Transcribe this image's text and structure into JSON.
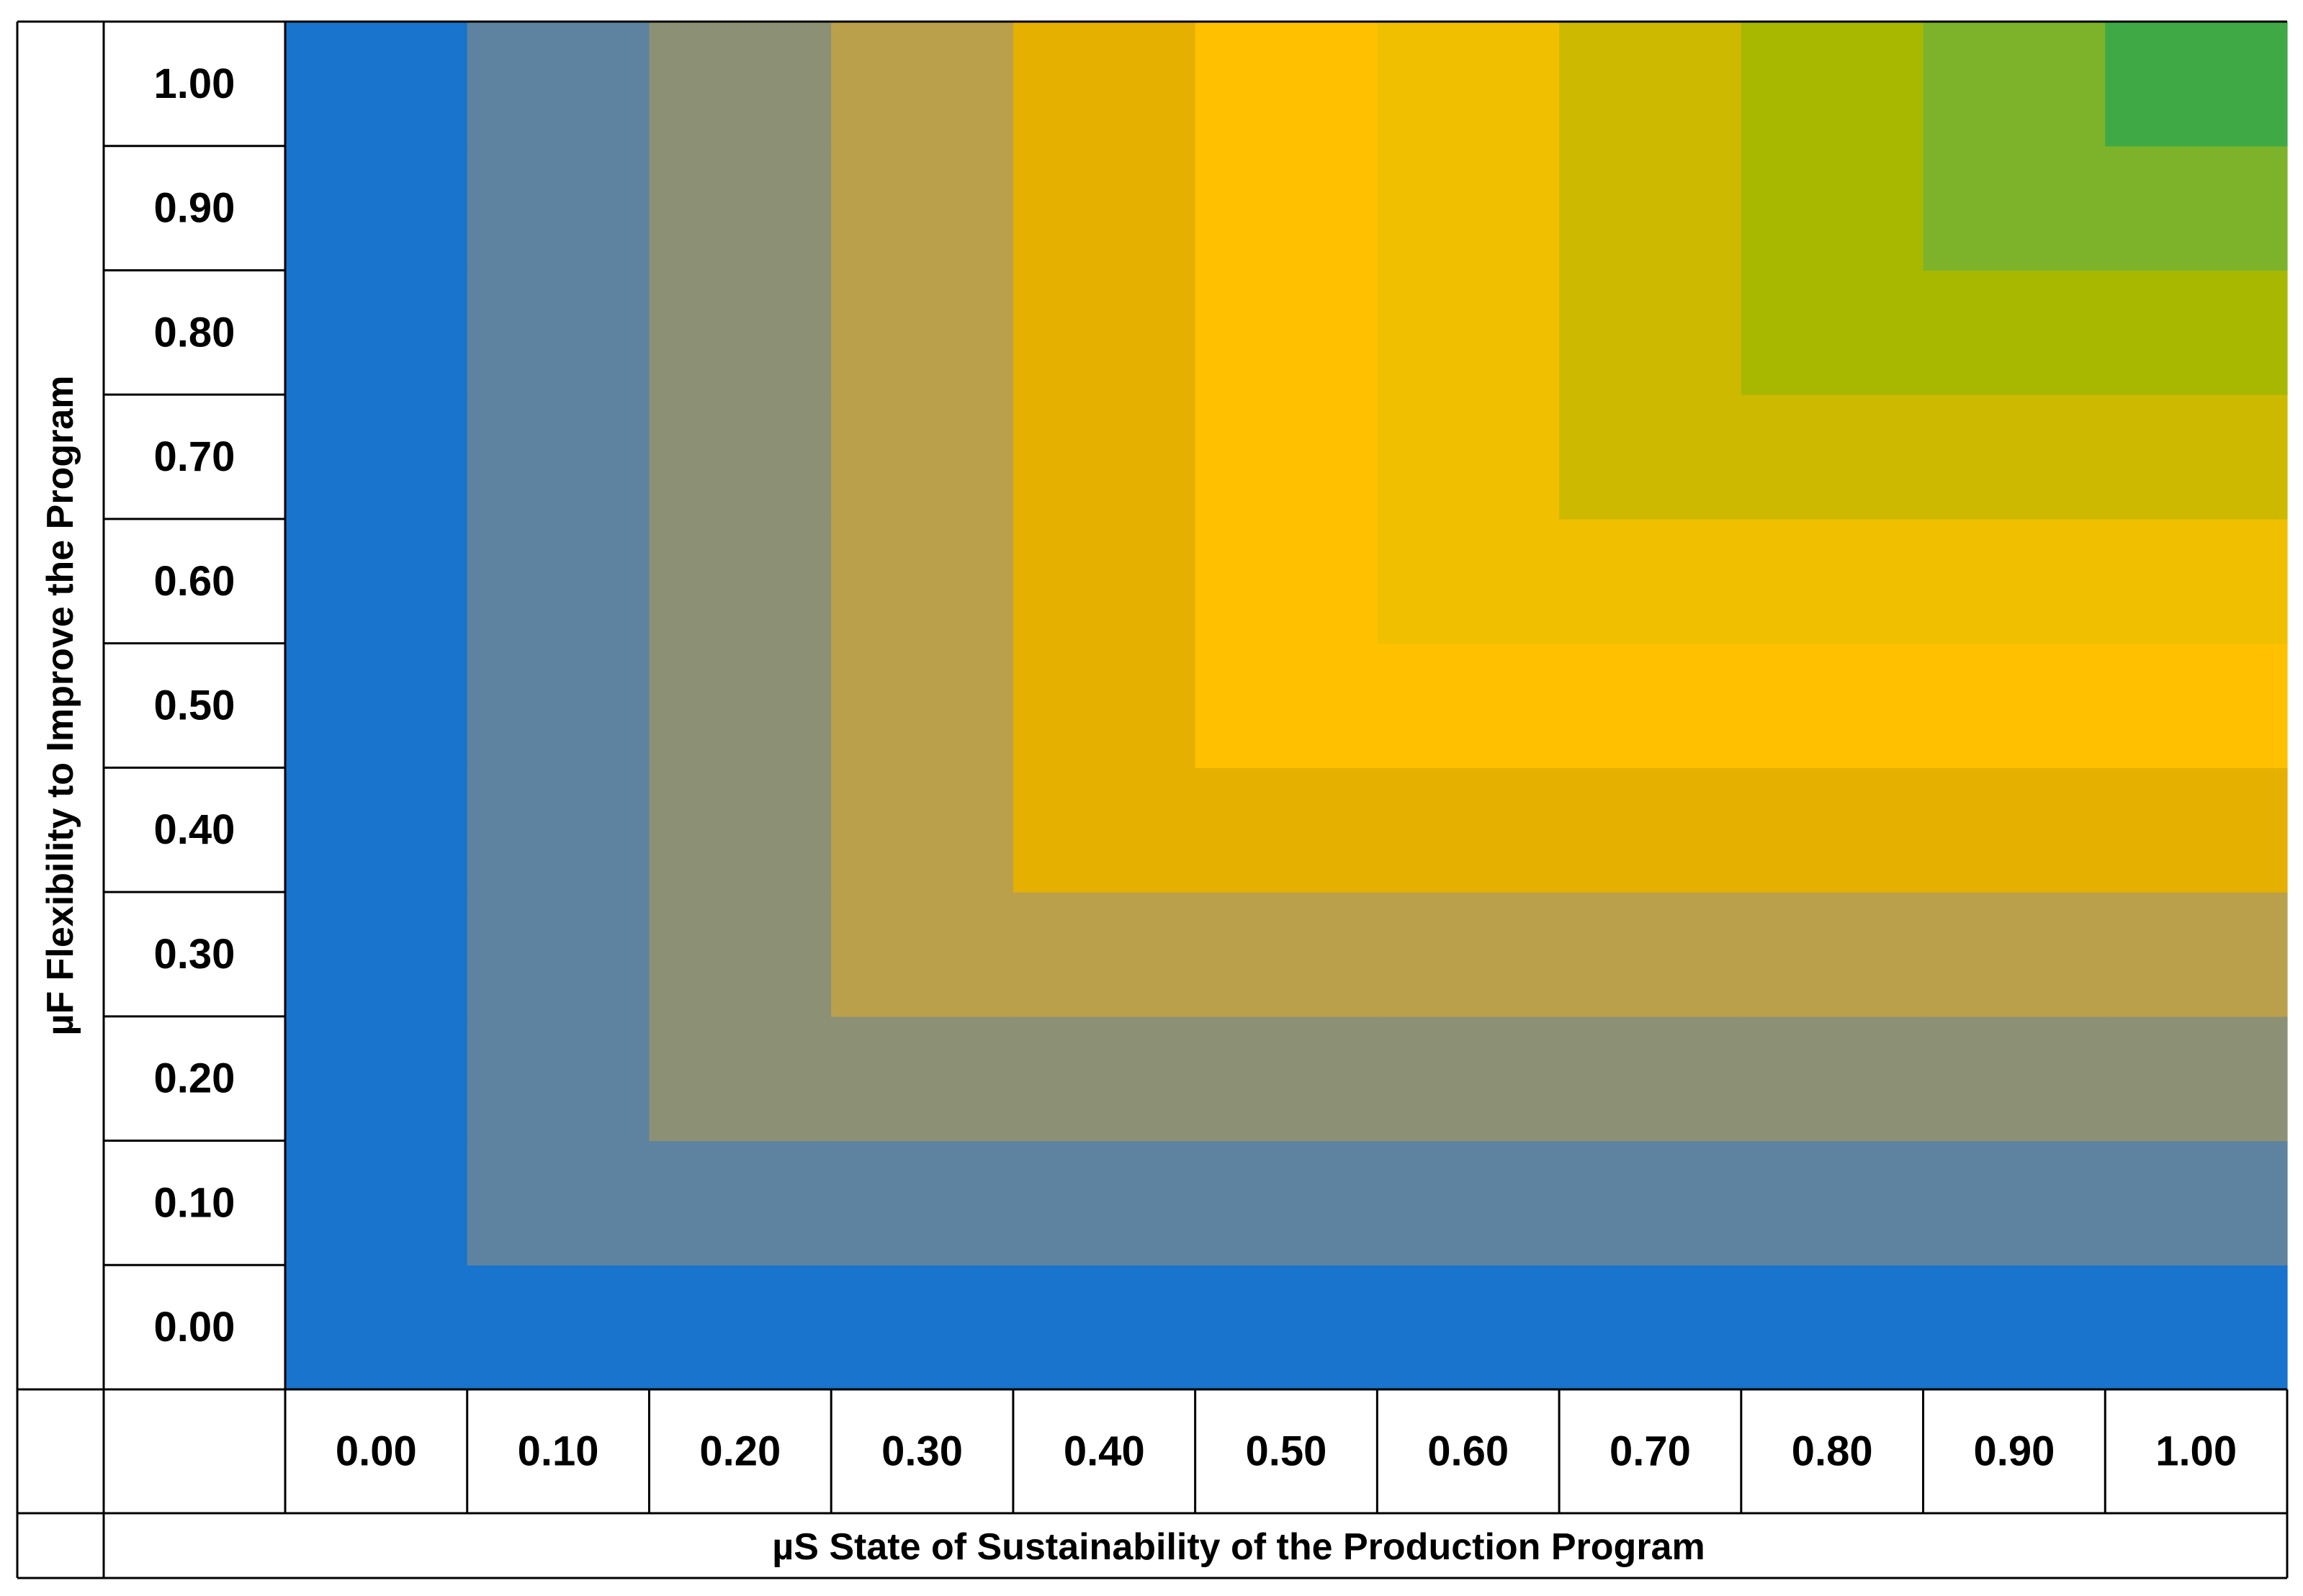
{
  "chart_data": {
    "type": "heatmap",
    "title": "",
    "xlabel": "µS State of Sustainability of the Production Program",
    "ylabel": "µF Flexibility to Improve the Program",
    "x": [
      "0.00",
      "0.10",
      "0.20",
      "0.30",
      "0.40",
      "0.50",
      "0.60",
      "0.70",
      "0.80",
      "0.90",
      "1.00"
    ],
    "y": [
      "0.00",
      "0.10",
      "0.20",
      "0.30",
      "0.40",
      "0.50",
      "0.60",
      "0.70",
      "0.80",
      "0.90",
      "1.00"
    ],
    "value_rule": "min(µS, µF)",
    "levels": [
      0.0,
      0.1,
      0.2,
      0.3,
      0.4,
      0.5,
      0.6,
      0.7,
      0.8,
      0.9,
      1.0
    ],
    "level_colors": [
      "#1874cd",
      "#5e83a0",
      "#8c9176",
      "#bba04b",
      "#e6b000",
      "#ffc000",
      "#f0c000",
      "#cdba00",
      "#a8b700",
      "#7cb32a",
      "#3faa45"
    ],
    "grid": false,
    "legend": "none"
  }
}
